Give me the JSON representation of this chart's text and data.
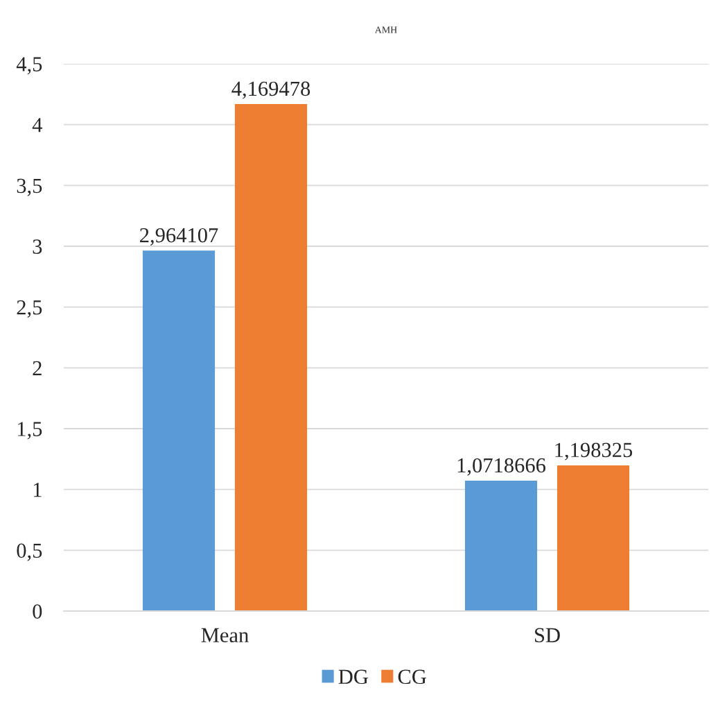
{
  "chart_data": {
    "type": "bar",
    "title": "AMH",
    "categories": [
      "Mean",
      "SD"
    ],
    "series": [
      {
        "name": "DG",
        "color": "#5b9bd5",
        "values": [
          2.964107,
          1.0718666
        ],
        "value_labels": [
          "2,964107",
          "1,0718666"
        ]
      },
      {
        "name": "CG",
        "color": "#ed7d31",
        "values": [
          4.169478,
          1.198325
        ],
        "value_labels": [
          "4,169478",
          "1,198325"
        ]
      }
    ],
    "ylim": [
      0,
      4.5
    ],
    "yticks": [
      0,
      {
        "value": 0.5,
        "label": "0,5"
      },
      1,
      {
        "value": 1.5,
        "label": "1,5"
      },
      2,
      {
        "value": 2.5,
        "label": "2,5"
      },
      3,
      {
        "value": 3.5,
        "label": "3,5"
      },
      4,
      {
        "value": 4.5,
        "label": "4,5"
      }
    ],
    "grid": "y",
    "legend": "bottom"
  }
}
